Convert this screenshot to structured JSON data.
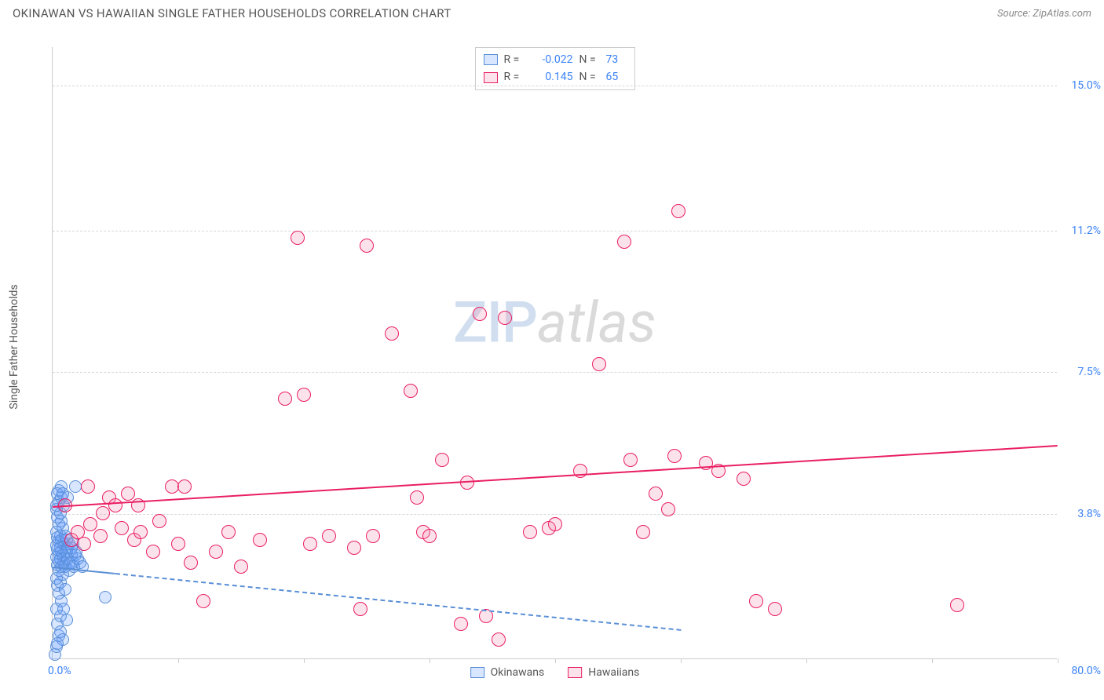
{
  "header": {
    "title": "OKINAWAN VS HAWAIIAN SINGLE FATHER HOUSEHOLDS CORRELATION CHART",
    "source": "Source: ZipAtlas.com"
  },
  "chart": {
    "type": "scatter",
    "y_axis_title": "Single Father Households",
    "background_color": "#ffffff",
    "grid_color": "#d8d8d8",
    "axis_color": "#cccccc",
    "tick_label_color": "#3b82f6",
    "text_color": "#555555",
    "xlim": [
      0,
      80
    ],
    "ylim": [
      0,
      16
    ],
    "x_ticks": [
      0,
      10,
      20,
      30,
      40,
      50,
      60,
      70,
      80
    ],
    "y_grid": [
      {
        "value": 3.8,
        "label": "3.8%"
      },
      {
        "value": 7.5,
        "label": "7.5%"
      },
      {
        "value": 11.2,
        "label": "11.2%"
      },
      {
        "value": 15.0,
        "label": "15.0%"
      }
    ],
    "x_axis_min_label": "0.0%",
    "x_axis_max_label": "80.0%",
    "watermark": {
      "part1": "ZIP",
      "part2": "atlas"
    },
    "series": [
      {
        "key": "okinawans",
        "label": "Okinawans",
        "fill": "rgba(99,155,255,0.25)",
        "stroke": "#5a8fd6",
        "marker_radius": 8,
        "trend": {
          "y_at_x0": 2.42,
          "y_at_xmax": -0.2,
          "style": "dashed",
          "x_visible_max": 50,
          "solid_until_x": 5
        },
        "stats": {
          "R": "-0.022",
          "N": "73"
        },
        "points": [
          [
            0.2,
            0.1
          ],
          [
            0.3,
            0.3
          ],
          [
            0.5,
            0.6
          ],
          [
            0.4,
            0.9
          ],
          [
            0.6,
            1.1
          ],
          [
            0.3,
            1.3
          ],
          [
            0.7,
            1.5
          ],
          [
            0.5,
            1.7
          ],
          [
            0.4,
            1.9
          ],
          [
            0.6,
            2.0
          ],
          [
            0.3,
            2.1
          ],
          [
            0.8,
            2.2
          ],
          [
            0.5,
            2.3
          ],
          [
            0.7,
            2.4
          ],
          [
            0.4,
            2.45
          ],
          [
            0.9,
            2.5
          ],
          [
            0.5,
            2.55
          ],
          [
            0.6,
            2.6
          ],
          [
            0.3,
            2.65
          ],
          [
            0.8,
            2.7
          ],
          [
            0.5,
            2.75
          ],
          [
            0.7,
            2.8
          ],
          [
            0.4,
            2.85
          ],
          [
            0.6,
            2.9
          ],
          [
            0.3,
            2.95
          ],
          [
            0.9,
            3.0
          ],
          [
            0.5,
            3.05
          ],
          [
            0.7,
            3.1
          ],
          [
            0.4,
            3.15
          ],
          [
            0.6,
            3.2
          ],
          [
            0.3,
            3.3
          ],
          [
            0.8,
            3.4
          ],
          [
            0.5,
            3.5
          ],
          [
            0.7,
            3.6
          ],
          [
            0.4,
            3.7
          ],
          [
            0.6,
            3.8
          ],
          [
            0.3,
            3.9
          ],
          [
            0.9,
            4.0
          ],
          [
            0.5,
            4.1
          ],
          [
            0.7,
            4.2
          ],
          [
            1.0,
            2.4
          ],
          [
            1.2,
            2.6
          ],
          [
            1.1,
            2.8
          ],
          [
            1.3,
            3.0
          ],
          [
            1.0,
            3.2
          ],
          [
            1.4,
            2.5
          ],
          [
            1.2,
            2.9
          ],
          [
            1.5,
            2.7
          ],
          [
            1.1,
            3.1
          ],
          [
            1.3,
            2.3
          ],
          [
            1.6,
            2.5
          ],
          [
            1.8,
            2.7
          ],
          [
            1.5,
            2.9
          ],
          [
            1.7,
            2.4
          ],
          [
            2.0,
            2.6
          ],
          [
            1.9,
            2.8
          ],
          [
            2.2,
            2.5
          ],
          [
            1.6,
            3.0
          ],
          [
            2.4,
            2.4
          ],
          [
            4.2,
            1.6
          ],
          [
            0.8,
            0.5
          ],
          [
            0.6,
            0.7
          ],
          [
            1.0,
            1.8
          ],
          [
            0.5,
            4.4
          ],
          [
            0.7,
            4.5
          ],
          [
            0.4,
            4.3
          ],
          [
            1.8,
            4.5
          ],
          [
            1.2,
            4.2
          ],
          [
            0.9,
            1.3
          ],
          [
            0.4,
            0.4
          ],
          [
            1.1,
            1.0
          ],
          [
            0.3,
            4.0
          ],
          [
            0.8,
            4.3
          ]
        ]
      },
      {
        "key": "hawaiians",
        "label": "Hawaiians",
        "fill": "rgba(244,143,177,0.25)",
        "stroke": "#e91e63",
        "marker_radius": 9,
        "trend": {
          "y_at_x0": 4.0,
          "y_at_xmax": 5.6,
          "style": "solid"
        },
        "stats": {
          "R": "0.145",
          "N": "65"
        },
        "points": [
          [
            1.5,
            3.1
          ],
          [
            2.0,
            3.3
          ],
          [
            2.5,
            3.0
          ],
          [
            3.0,
            3.5
          ],
          [
            3.8,
            3.2
          ],
          [
            4.5,
            4.2
          ],
          [
            5.0,
            4.0
          ],
          [
            5.5,
            3.4
          ],
          [
            6.0,
            4.3
          ],
          [
            6.5,
            3.1
          ],
          [
            7.0,
            3.3
          ],
          [
            8.0,
            2.8
          ],
          [
            8.5,
            3.6
          ],
          [
            10.0,
            3.0
          ],
          [
            9.5,
            4.5
          ],
          [
            11.0,
            2.5
          ],
          [
            12.0,
            1.5
          ],
          [
            13.0,
            2.8
          ],
          [
            14.0,
            3.3
          ],
          [
            18.5,
            6.8
          ],
          [
            19.5,
            11.0
          ],
          [
            20.0,
            6.9
          ],
          [
            22.0,
            3.2
          ],
          [
            24.0,
            2.9
          ],
          [
            25.0,
            10.8
          ],
          [
            24.5,
            1.3
          ],
          [
            27.0,
            8.5
          ],
          [
            28.5,
            7.0
          ],
          [
            29.0,
            4.2
          ],
          [
            29.5,
            3.3
          ],
          [
            31.0,
            5.2
          ],
          [
            32.5,
            0.9
          ],
          [
            33.0,
            4.6
          ],
          [
            34.0,
            9.0
          ],
          [
            34.5,
            1.1
          ],
          [
            35.5,
            0.5
          ],
          [
            36.0,
            8.9
          ],
          [
            39.5,
            3.4
          ],
          [
            40.0,
            3.5
          ],
          [
            42.0,
            4.9
          ],
          [
            43.5,
            7.7
          ],
          [
            45.5,
            10.9
          ],
          [
            47.0,
            3.3
          ],
          [
            49.0,
            3.9
          ],
          [
            49.5,
            5.3
          ],
          [
            49.8,
            11.7
          ],
          [
            52.0,
            5.1
          ],
          [
            53.0,
            4.9
          ],
          [
            55.0,
            4.7
          ],
          [
            56.0,
            1.5
          ],
          [
            57.5,
            1.3
          ],
          [
            72.0,
            1.4
          ],
          [
            1.0,
            4.0
          ],
          [
            2.8,
            4.5
          ],
          [
            6.8,
            4.0
          ],
          [
            15.0,
            2.4
          ],
          [
            48.0,
            4.3
          ],
          [
            46.0,
            5.2
          ],
          [
            25.5,
            3.2
          ],
          [
            16.5,
            3.1
          ],
          [
            20.5,
            3.0
          ],
          [
            4.0,
            3.8
          ],
          [
            10.5,
            4.5
          ],
          [
            30.0,
            3.2
          ],
          [
            38.0,
            3.3
          ]
        ]
      }
    ],
    "legend_items": [
      {
        "key": "okinawans",
        "label": "Okinawans"
      },
      {
        "key": "hawaiians",
        "label": "Hawaiians"
      }
    ]
  }
}
